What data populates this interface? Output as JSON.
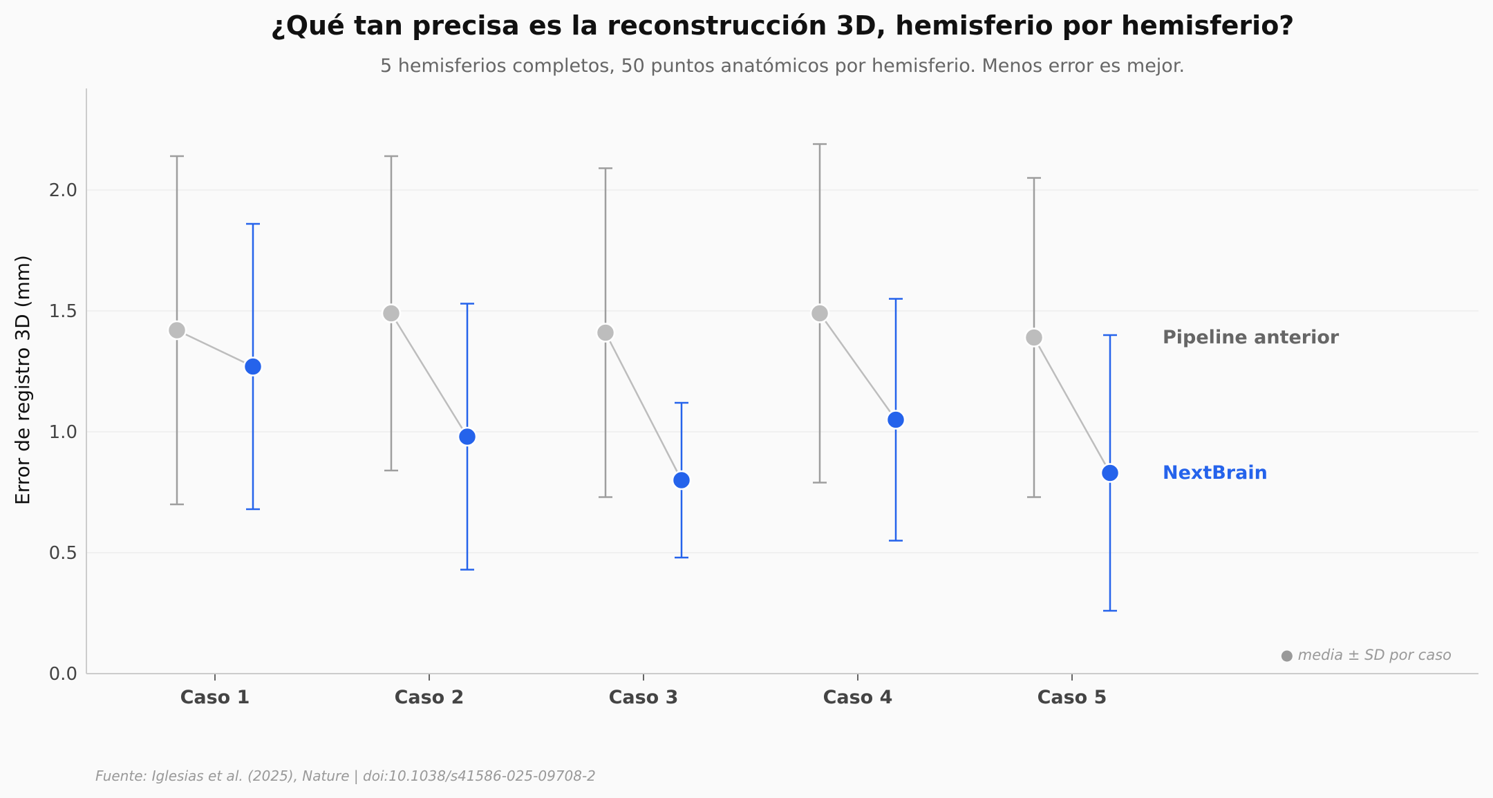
{
  "chart_data": {
    "type": "scatter",
    "title": "¿Qué tan precisa es la reconstrucción 3D, hemisferio por hemisferio?",
    "subtitle": "5 hemisferios completos, 50 puntos anatómicos por hemisferio. Menos error es mejor.",
    "ylabel": "Error de registro 3D (mm)",
    "xlabel": "",
    "categories": [
      "Caso 1",
      "Caso 2",
      "Caso 3",
      "Caso 4",
      "Caso 5"
    ],
    "ylim": [
      0,
      2.42
    ],
    "yticks": [
      "0.0",
      "0.5",
      "1.0",
      "1.5",
      "2.0"
    ],
    "grid": "horizontal",
    "series": [
      {
        "name": "Pipeline anterior",
        "color": "#bdbdbd",
        "errorbar_color": "#9e9e9e",
        "label_color": "#666666",
        "mean": [
          1.42,
          1.49,
          1.41,
          1.49,
          1.39
        ],
        "sd": [
          0.72,
          0.65,
          0.68,
          0.7,
          0.66
        ]
      },
      {
        "name": "NextBrain",
        "color": "#2563eb",
        "errorbar_color": "#2563eb",
        "label_color": "#2563eb",
        "mean": [
          1.27,
          0.98,
          0.8,
          1.05,
          0.83
        ],
        "sd": [
          0.59,
          0.55,
          0.32,
          0.5,
          0.57
        ]
      }
    ],
    "annotation": "● media ± SD por caso",
    "source": "Fuente: Iglesias et al. (2025), Nature | doi:10.1038/s41586-025-09708-2"
  }
}
